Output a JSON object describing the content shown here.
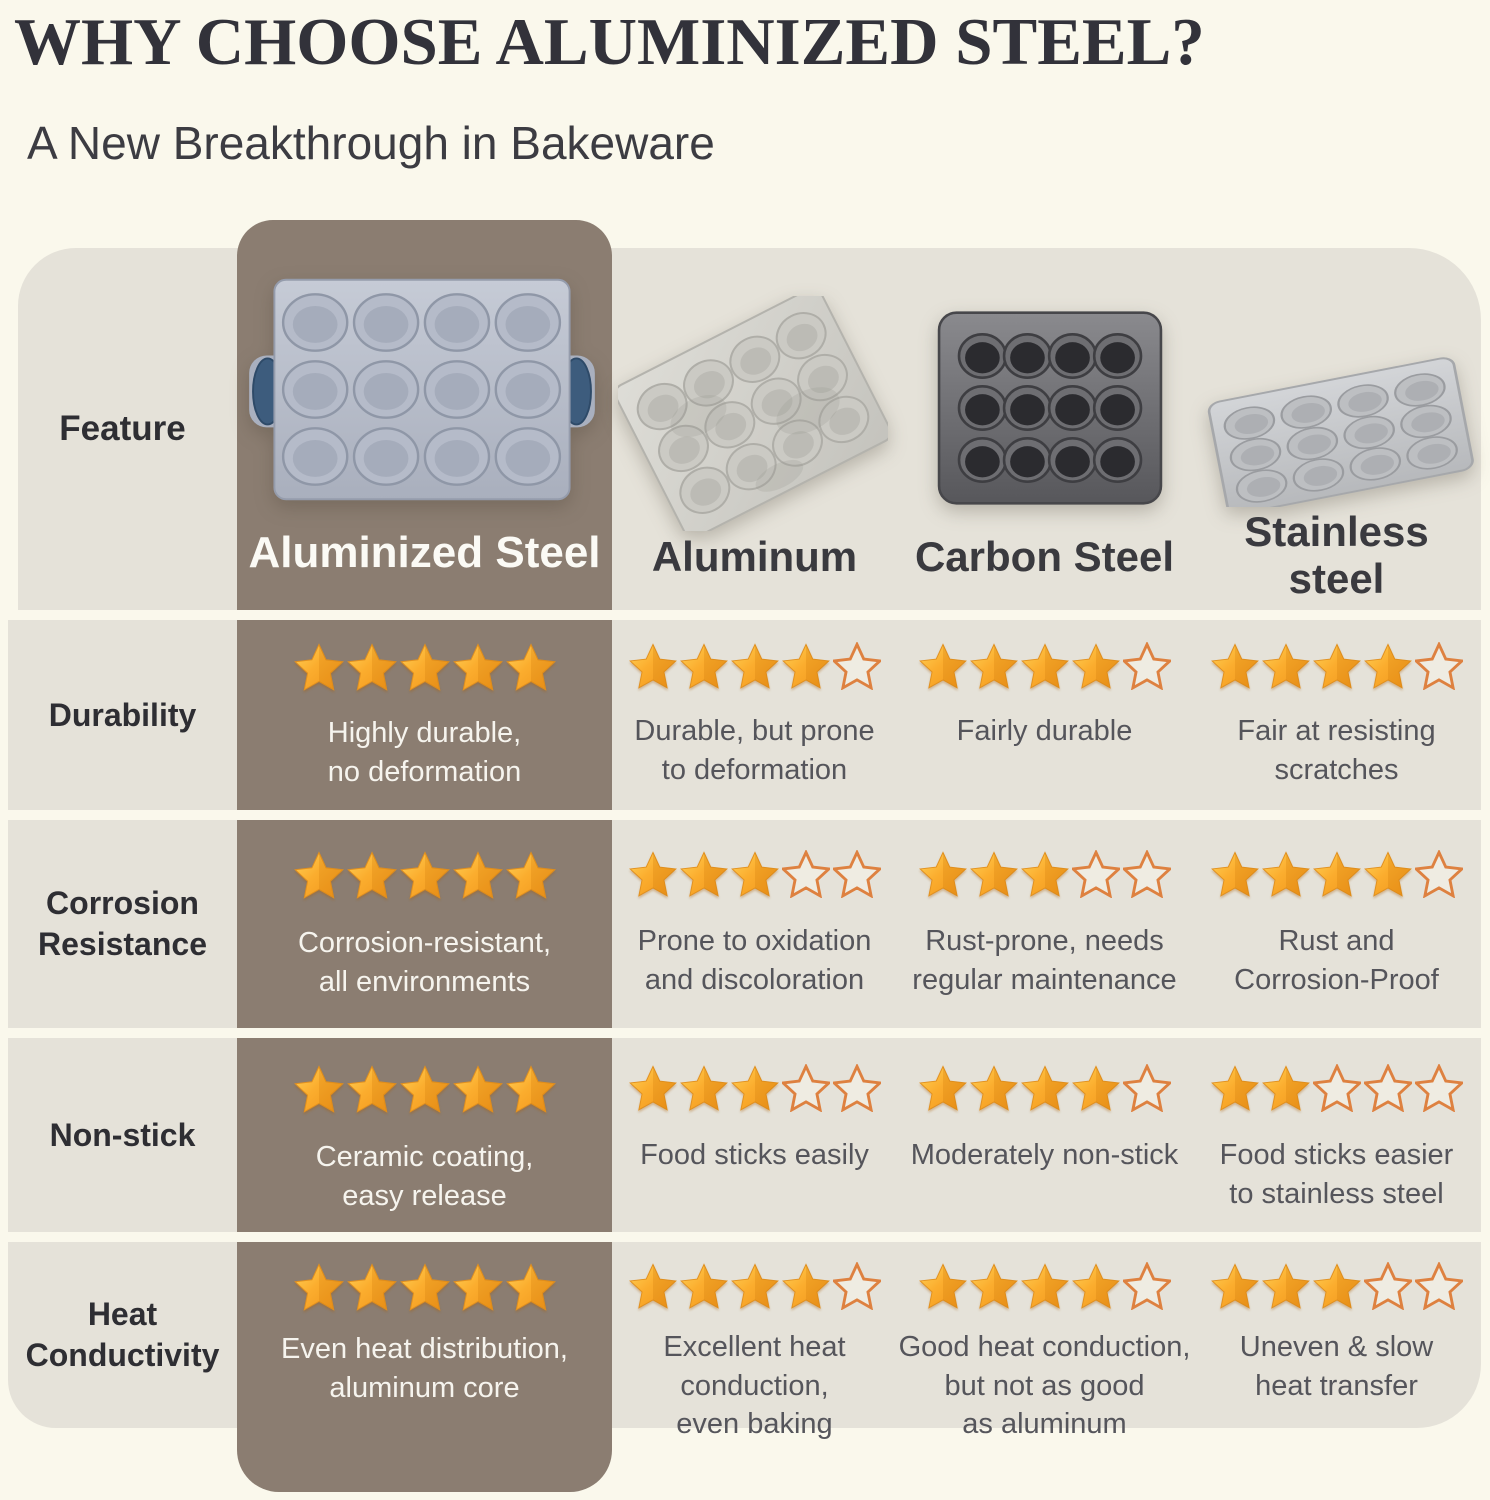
{
  "title": "WHY CHOOSE ALUMINIZED STEEL?",
  "subtitle": "A New Breakthrough in Bakeware",
  "colors": {
    "background": "#FAF8EC",
    "row_background": "#E5E2D9",
    "highlight_column": "#8B7D71",
    "star_fill": "#FBAC2F",
    "star_outline": "#DE8140",
    "title_text": "#32323A",
    "body_text": "#55555B",
    "highlight_text": "#F6F4EE"
  },
  "pan_images": [
    "aluminized-steel-muffin-pan",
    "aluminum-muffin-pan",
    "carbon-steel-muffin-pan",
    "stainless-steel-muffin-pan"
  ],
  "chart_data": {
    "type": "table",
    "title": "WHY CHOOSE ALUMINIZED STEEL?",
    "subtitle": "A New Breakthrough in Bakeware",
    "feature_column_header": "Feature",
    "columns": [
      "Aluminized Steel",
      "Aluminum",
      "Carbon Steel",
      "Stainless steel"
    ],
    "highlighted_column": "Aluminized Steel",
    "max_rating": 5,
    "rows": [
      {
        "feature": "Durability",
        "ratings": [
          5,
          4,
          4,
          4
        ],
        "descriptions": [
          "Highly durable,\nno deformation",
          "Durable, but prone\nto deformation",
          "Fairly durable",
          "Fair at resisting\nscratches"
        ]
      },
      {
        "feature": "Corrosion\nResistance",
        "ratings": [
          5,
          3,
          3,
          4
        ],
        "descriptions": [
          "Corrosion-resistant,\nall environments",
          "Prone to oxidation\nand discoloration",
          "Rust-prone, needs\nregular maintenance",
          "Rust and\nCorrosion-Proof"
        ]
      },
      {
        "feature": "Non-stick",
        "ratings": [
          5,
          3,
          4,
          2
        ],
        "descriptions": [
          "Ceramic coating,\neasy release",
          "Food sticks easily",
          "Moderately non-stick",
          "Food sticks easier\nto stainless steel"
        ]
      },
      {
        "feature": "Heat\nConductivity",
        "ratings": [
          5,
          4,
          4,
          3
        ],
        "descriptions": [
          "Even heat distribution,\naluminum core",
          "Excellent heat\nconduction,\neven baking",
          "Good heat conduction,\nbut not as good\nas aluminum",
          "Uneven & slow\nheat transfer"
        ]
      }
    ]
  }
}
